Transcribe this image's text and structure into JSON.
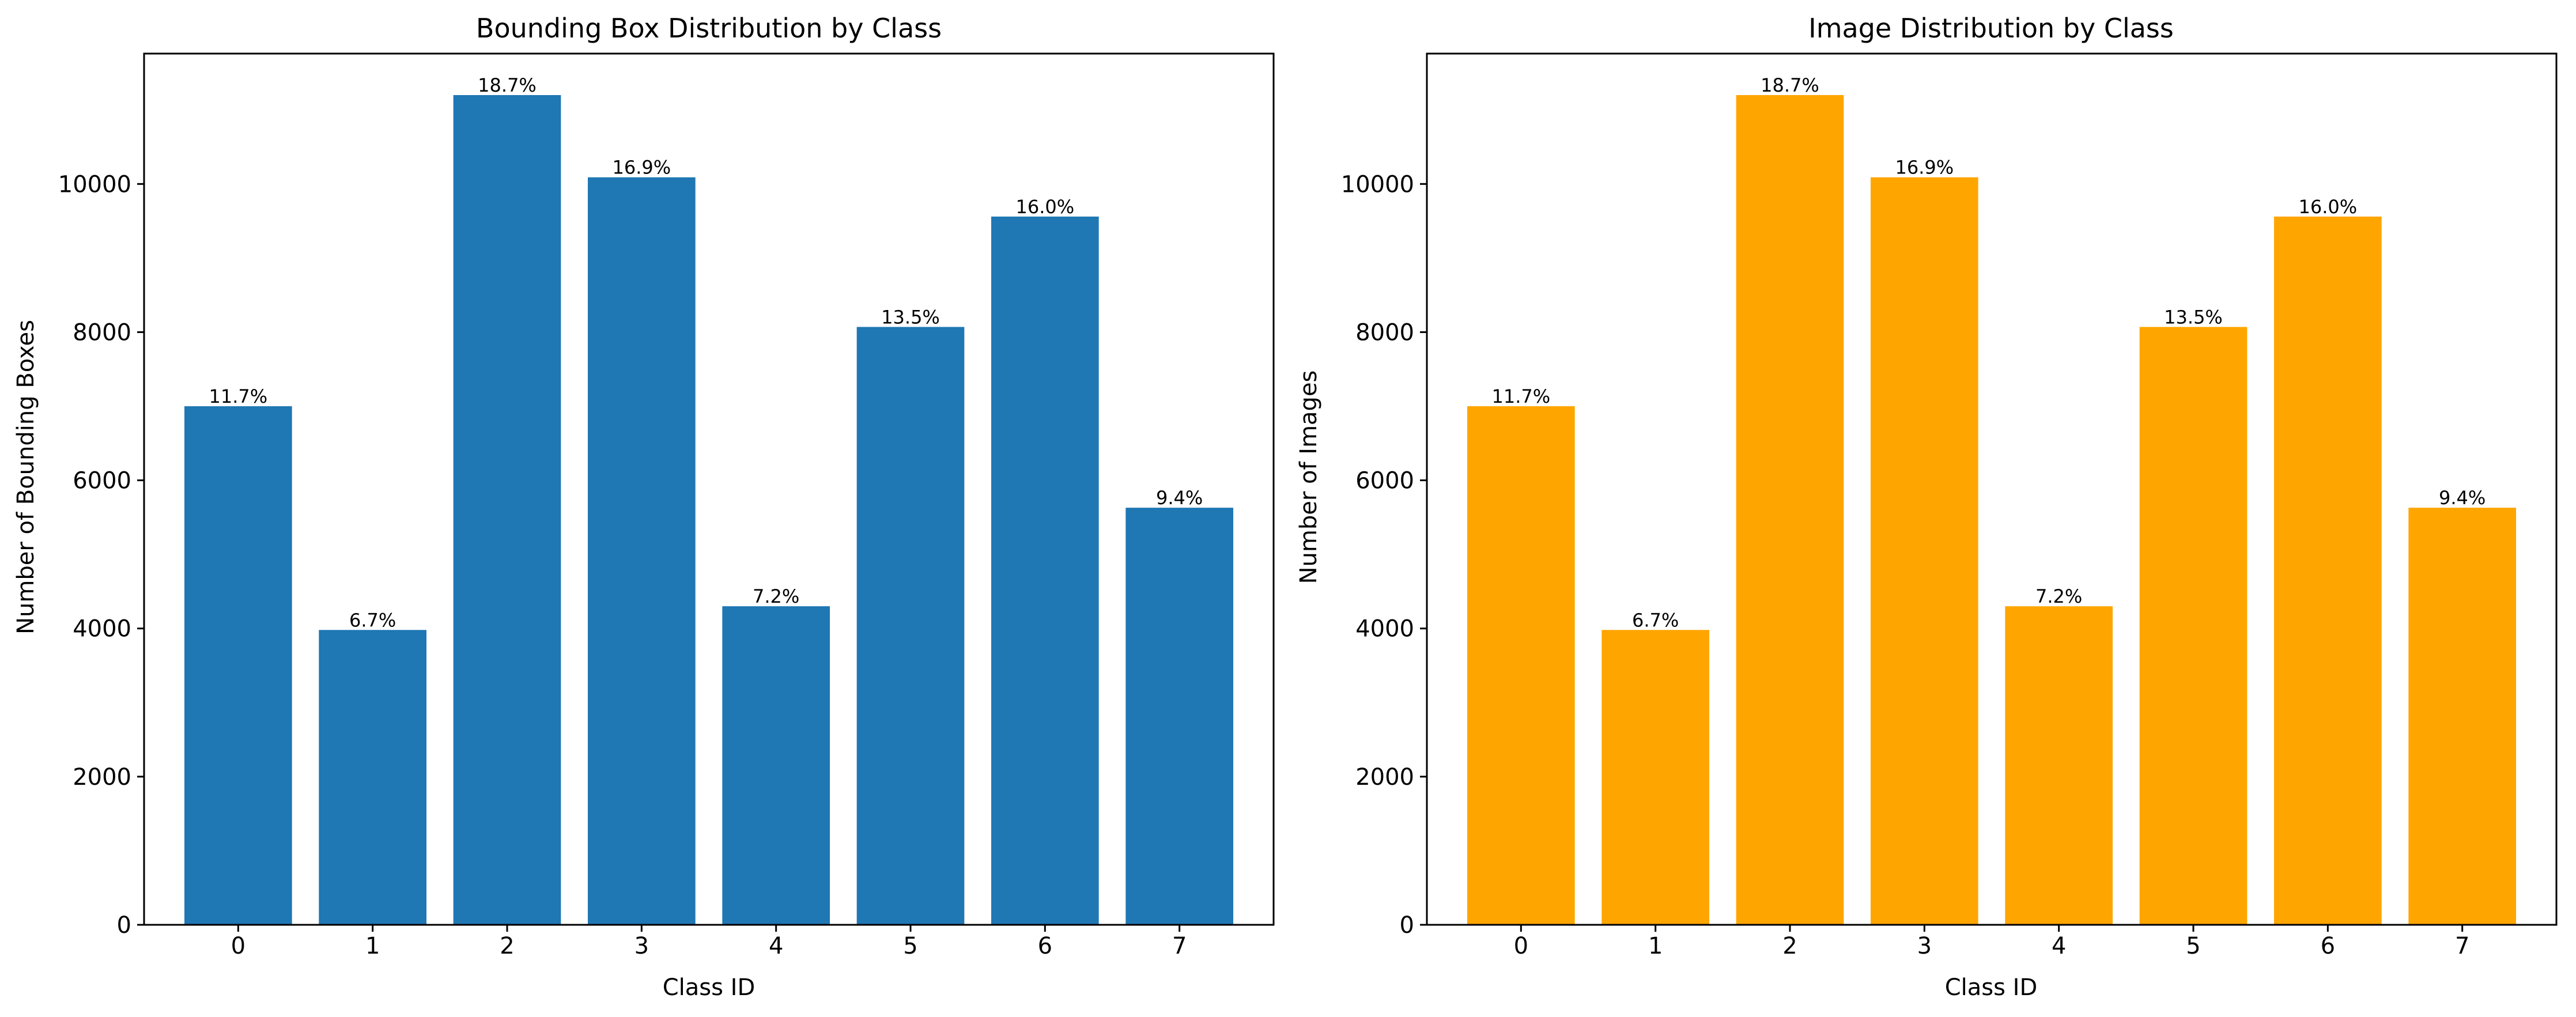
{
  "chart_data": [
    {
      "type": "bar",
      "title": "Bounding Box Distribution by Class",
      "xlabel": "Class ID",
      "ylabel": "Number of Bounding Boxes",
      "categories": [
        "0",
        "1",
        "2",
        "3",
        "4",
        "5",
        "6",
        "7"
      ],
      "values": [
        7000,
        3980,
        11200,
        10090,
        4300,
        8070,
        9560,
        5630
      ],
      "data_labels": [
        "11.7%",
        "6.7%",
        "18.7%",
        "16.9%",
        "7.2%",
        "13.5%",
        "16.0%",
        "9.4%"
      ],
      "yticks": [
        0,
        2000,
        4000,
        6000,
        8000,
        10000
      ],
      "ylim": [
        0,
        11760
      ],
      "bar_color": "#1f77b4",
      "grid": false,
      "legend": "none"
    },
    {
      "type": "bar",
      "title": "Image Distribution by Class",
      "xlabel": "Class ID",
      "ylabel": "Number of Images",
      "categories": [
        "0",
        "1",
        "2",
        "3",
        "4",
        "5",
        "6",
        "7"
      ],
      "values": [
        7000,
        3980,
        11200,
        10090,
        4300,
        8070,
        9560,
        5630
      ],
      "data_labels": [
        "11.7%",
        "6.7%",
        "18.7%",
        "16.9%",
        "7.2%",
        "13.5%",
        "16.0%",
        "9.4%"
      ],
      "yticks": [
        0,
        2000,
        4000,
        6000,
        8000,
        10000
      ],
      "ylim": [
        0,
        11760
      ],
      "bar_color": "#ffa500",
      "grid": false,
      "legend": "none"
    }
  ]
}
